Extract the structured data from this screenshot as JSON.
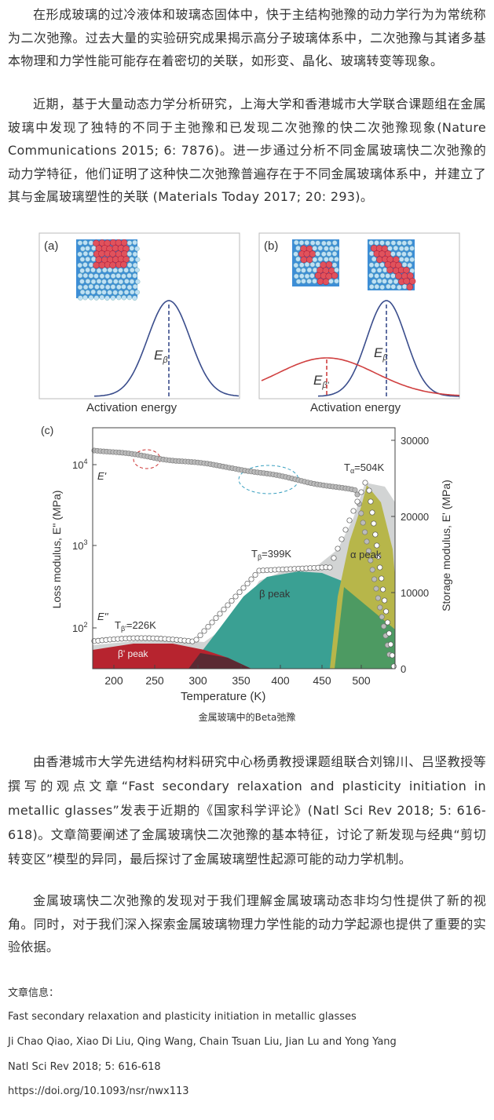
{
  "paragraphs": [
    "在形成玻璃的过冷液体和玻璃态固体中，快于主结构弛豫的动力学行为为常统称为二次弛豫。过去大量的实验研究成果揭示高分子玻璃体系中，二次弛豫与其诸多基本物理和力学性能可能存在着密切的关联，如形变、晶化、玻璃转变等现象。",
    "近期，基于大量动态力学分析研究，上海大学和香港城市大学联合课题组在金属玻璃中发现了独特的不同于主弛豫和已发现二次弛豫的快二次弛豫现象(Nature Communications 2015; 6: 7876)。进一步通过分析不同金属玻璃快二次弛豫的动力学特征，他们证明了这种快二次弛豫普遍存在于不同金属玻璃体系中，并建立了其与金属玻璃塑性的关联 (Materials Today 2017; 20: 293)。",
    "由香港城市大学先进结构材料研究中心杨勇教授课题组联合刘锦川、吕坚教授等撰写的观点文章“Fast secondary relaxation and plasticity initiation in metallic glasses”发表于近期的《国家科学评论》(Natl Sci Rev 2018; 5: 616-618)。文章简要阐述了金属玻璃快二次弛豫的基本特征，讨论了新发现与经典“剪切转变区”模型的异同，最后探讨了金属玻璃塑性起源可能的动力学机制。",
    "金属玻璃快二次弛豫的发现对于我们理解金属玻璃动态非均匀性提供了新的视角。同时，对于我们深入探索金属玻璃物理力学性能的动力学起源也提供了重要的实验依据。"
  ],
  "figure": {
    "panel_a": {
      "label": "(a)",
      "x_label": "Activation energy",
      "e_main": "E",
      "e_sub": "β"
    },
    "panel_b": {
      "label": "(b)",
      "x_label": "Activation energy",
      "e_main": "E",
      "e_sub": "β",
      "e2_main": "E",
      "e2_sub": "β'"
    },
    "panel_c": {
      "label": "(c)",
      "x_label": "Temperature (K)",
      "y_label": "Loss modulus, E'' (MPa)",
      "y2_label": "Storage modulus, E' (MPa)",
      "xticks": [
        "200",
        "250",
        "300",
        "350",
        "400",
        "450",
        "500"
      ],
      "yticks": [
        {
          "base": "10",
          "exp": "2"
        },
        {
          "base": "10",
          "exp": "3"
        },
        {
          "base": "10",
          "exp": "4"
        }
      ],
      "y2ticks": [
        "0",
        "10000",
        "20000",
        "30000"
      ],
      "t_alpha": {
        "main": "T",
        "sub": "α",
        "rest": "=504K"
      },
      "t_beta": {
        "main": "T",
        "sub": "β",
        "rest": "=399K"
      },
      "t_beta_prime": {
        "main": "T",
        "sub": "β'",
        "rest": "=226K"
      },
      "alpha_peak": "α peak",
      "beta_peak": "β peak",
      "beta_prime_peak": "β' peak",
      "e_storage": "E'",
      "e_loss": "E''"
    },
    "caption": "金属玻璃中的Beta弛豫"
  },
  "info": {
    "heading": "文章信息：",
    "lines": [
      "Fast secondary relaxation and plasticity initiation in metallic glasses",
      "Ji Chao Qiao, Xiao Di Liu, Qing Wang, Chain Tsuan Liu, Jian Lu and Yong Yang",
      "Natl Sci Rev 2018; 5: 616-618",
      "https://doi.org/10.1093/nsr/nwx113"
    ]
  }
}
